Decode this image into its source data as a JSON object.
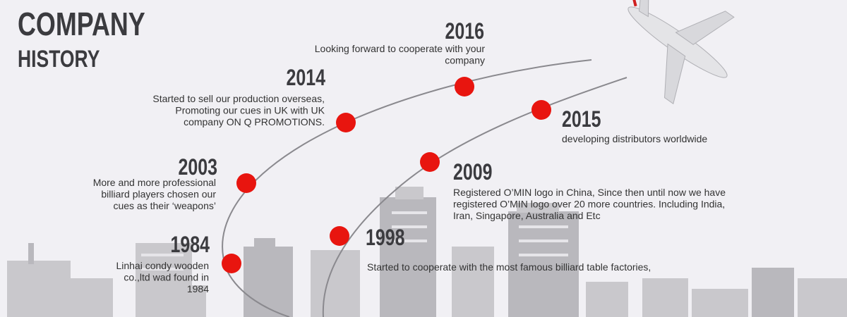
{
  "header": {
    "title_line1": "COMPANY",
    "title_line2": "HISTORY"
  },
  "events": [
    {
      "year": "1984",
      "lines": [
        "Linhai condy wooden",
        "co.,ltd wad found in",
        "1984"
      ]
    },
    {
      "year": "2003",
      "lines": [
        "More and more professional",
        "billiard players chosen our",
        "cues as their ‘weapons’"
      ]
    },
    {
      "year": "2014",
      "lines": [
        "Started to sell our production overseas,",
        "Promoting our cues in UK with UK",
        "company ON Q PROMOTIONS."
      ]
    },
    {
      "year": "2016",
      "lines": [
        "Looking forward to cooperate with your",
        "company"
      ]
    },
    {
      "year": "1998",
      "lines": [
        "Started to cooperate with the most famous billiard table factories,"
      ]
    },
    {
      "year": "2009",
      "lines": [
        "Registered O’MIN logo in China, Since then until now we have",
        "registered O’MIN logo over 20 more countries. Including India,",
        "Iran, Singapore, Australia and Etc"
      ]
    },
    {
      "year": "2015",
      "lines": [
        "developing distributors worldwide"
      ]
    }
  ]
}
